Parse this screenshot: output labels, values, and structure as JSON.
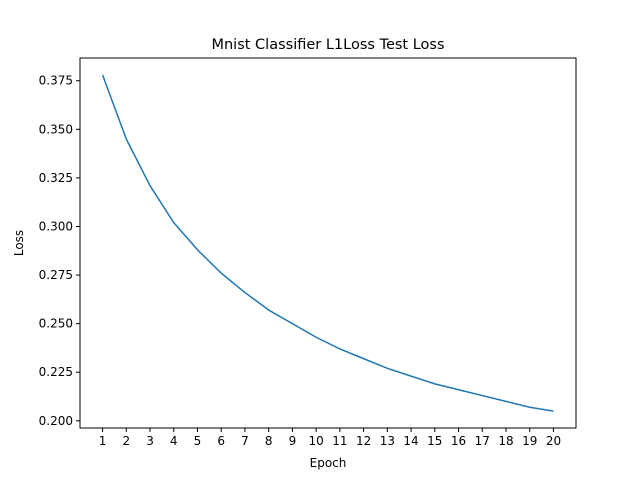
{
  "chart_data": {
    "type": "line",
    "title": "Mnist Classifier L1Loss Test Loss",
    "xlabel": "Epoch",
    "ylabel": "Loss",
    "xlim": [
      0.05,
      20.95
    ],
    "ylim": [
      0.1963,
      0.3867
    ],
    "grid": false,
    "x_ticks": [
      "1",
      "2",
      "3",
      "4",
      "5",
      "6",
      "7",
      "8",
      "9",
      "10",
      "11",
      "12",
      "13",
      "14",
      "15",
      "16",
      "17",
      "18",
      "19",
      "20"
    ],
    "y_ticks": [
      "0.200",
      "0.225",
      "0.250",
      "0.275",
      "0.300",
      "0.325",
      "0.350",
      "0.375"
    ],
    "series": [
      {
        "color": "#1f77b4",
        "x": [
          1,
          2,
          3,
          4,
          5,
          6,
          7,
          8,
          9,
          10,
          11,
          12,
          13,
          14,
          15,
          16,
          17,
          18,
          19,
          20
        ],
        "y": [
          0.378,
          0.345,
          0.321,
          0.302,
          0.288,
          0.276,
          0.266,
          0.257,
          0.25,
          0.243,
          0.237,
          0.232,
          0.227,
          0.223,
          0.219,
          0.216,
          0.213,
          0.21,
          0.207,
          0.205
        ]
      }
    ]
  }
}
